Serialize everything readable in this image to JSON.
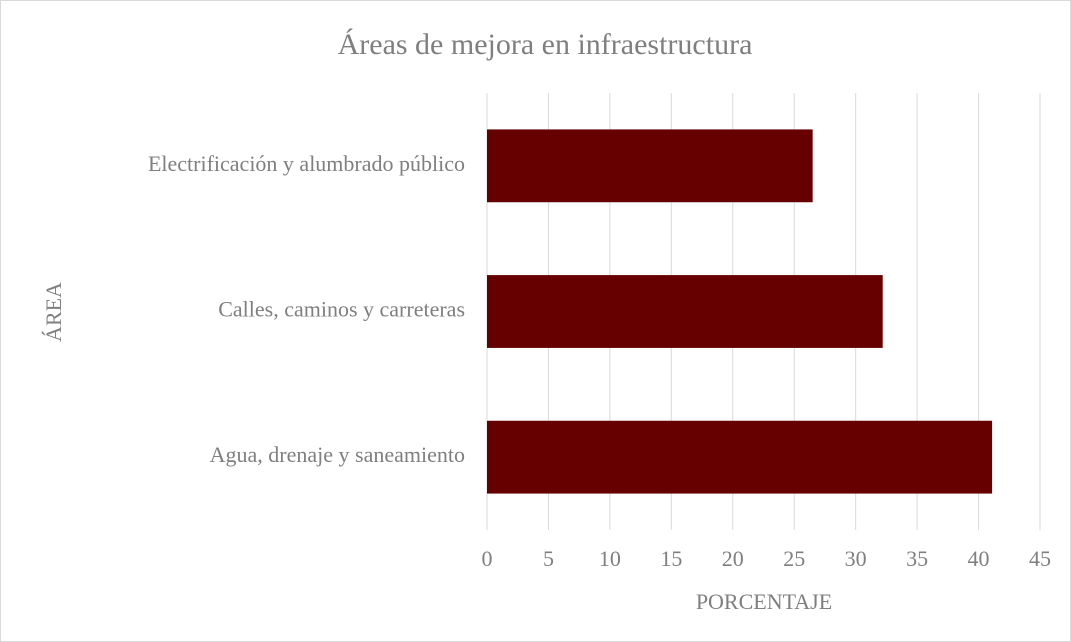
{
  "chart_data": {
    "type": "bar",
    "orientation": "horizontal",
    "title": "Áreas de mejora en infraestructura",
    "x_label": "PORCENTAJE",
    "y_label": "ÁREA",
    "categories": [
      "Electrificación y alumbrado público",
      "Calles, caminos y carreteras",
      "Agua, drenaje y saneamiento"
    ],
    "values": [
      26.5,
      32.2,
      41.1
    ],
    "color": "#660000",
    "xlim": [
      0,
      45
    ],
    "xticks": [
      0,
      5,
      10,
      15,
      20,
      25,
      30,
      35,
      40,
      45
    ],
    "grid": true
  }
}
